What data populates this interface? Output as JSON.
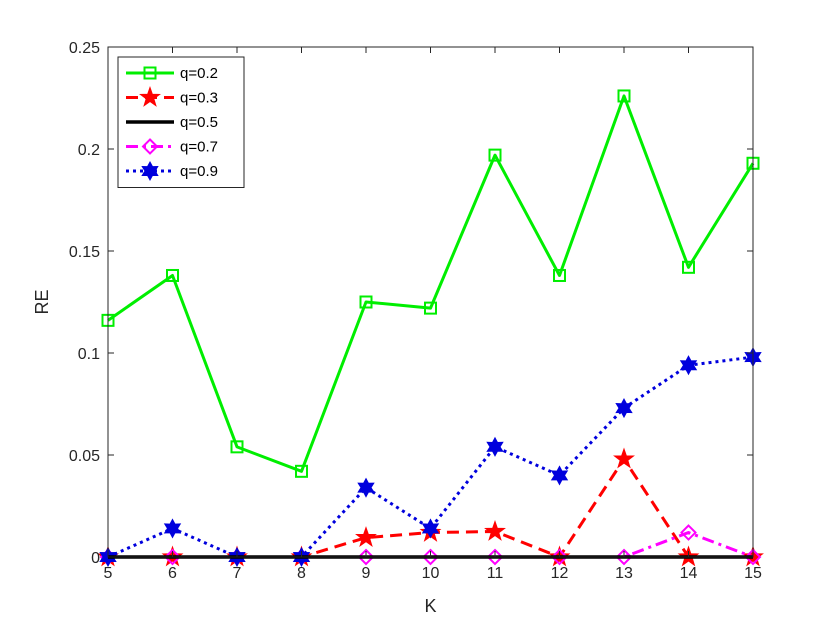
{
  "chart_data": {
    "type": "line",
    "xlabel": "K",
    "ylabel": "RE",
    "xlim": [
      5,
      15
    ],
    "ylim": [
      0,
      0.25
    ],
    "xticks": [
      "5",
      "6",
      "7",
      "8",
      "9",
      "10",
      "11",
      "12",
      "13",
      "14",
      "15"
    ],
    "yticks": [
      "0",
      "0.05",
      "0.1",
      "0.15",
      "0.2",
      "0.25"
    ],
    "grid": false,
    "legend_position": "top-left",
    "x": [
      5,
      6,
      7,
      8,
      9,
      10,
      11,
      12,
      13,
      14,
      15
    ],
    "series": [
      {
        "name": "q=0.2",
        "color": "#00ee00",
        "line_style": "solid",
        "marker": "square",
        "values": [
          0.116,
          0.138,
          0.054,
          0.042,
          0.125,
          0.122,
          0.197,
          0.138,
          0.226,
          0.142,
          0.193
        ]
      },
      {
        "name": "q=0.3",
        "color": "#ff0000",
        "line_style": "dashed",
        "marker": "star",
        "values": [
          0.0,
          0.0,
          0.0,
          0.0,
          0.0095,
          0.012,
          0.0125,
          0.0,
          0.048,
          0.0,
          0.0
        ]
      },
      {
        "name": "q=0.5",
        "color": "#000000",
        "line_style": "solid",
        "marker": "none",
        "values": [
          0.0,
          0.0,
          0.0,
          0.0,
          0.0,
          0.0,
          0.0,
          0.0,
          0.0,
          0.0,
          0.0
        ]
      },
      {
        "name": "q=0.7",
        "color": "#ff00ff",
        "line_style": "dashdot",
        "marker": "diamond",
        "values": [
          0.0,
          0.0,
          0.0,
          0.0,
          0.0,
          0.0,
          0.0,
          0.0,
          0.0,
          0.012,
          0.0
        ]
      },
      {
        "name": "q=0.9",
        "color": "#0000dd",
        "line_style": "dotted",
        "marker": "hexagram",
        "values": [
          0.0,
          0.014,
          0.0,
          0.0,
          0.034,
          0.014,
          0.054,
          0.04,
          0.073,
          0.094,
          0.098
        ]
      }
    ]
  }
}
